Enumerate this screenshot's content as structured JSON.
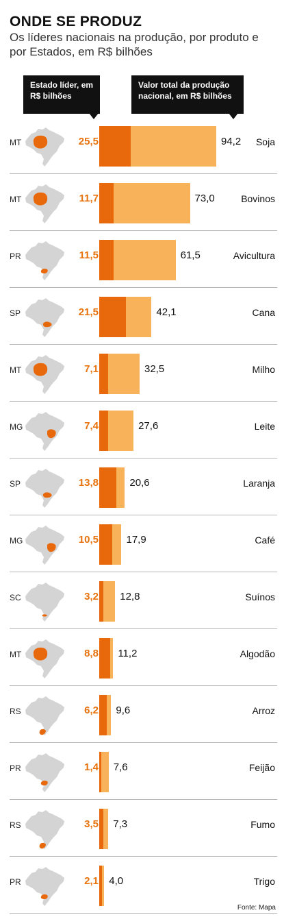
{
  "header": {
    "title": "ONDE SE PRODUZ",
    "subtitle": "Os líderes nacionais na produção, por produto e por Estados, em R$ bilhões"
  },
  "labels": {
    "state_leader": "Estado líder, em R$ bilhões",
    "national_total": "Valor total da produção nacional, em R$ bilhões"
  },
  "source": "Fonte: Mapa",
  "colors": {
    "leader": "#e8690b",
    "total": "#f7b25a",
    "map": "#d4d4d4",
    "highlight": "#e8690b"
  },
  "chart_data": {
    "type": "bar",
    "categories": [
      "Soja",
      "Bovinos",
      "Avicultura",
      "Cana",
      "Milho",
      "Leite",
      "Laranja",
      "Café",
      "Suínos",
      "Algodão",
      "Arroz",
      "Feijão",
      "Fumo",
      "Trigo"
    ],
    "series": [
      {
        "name": "Estado líder, em R$ bilhões",
        "values": [
          25.5,
          11.7,
          11.5,
          21.5,
          7.1,
          7.4,
          13.8,
          10.5,
          3.2,
          8.8,
          6.2,
          1.4,
          3.5,
          2.1
        ]
      },
      {
        "name": "Valor total da produção nacional, em R$ bilhões",
        "values": [
          94.2,
          73.0,
          61.5,
          42.1,
          32.5,
          27.6,
          20.6,
          17.9,
          12.8,
          11.2,
          9.6,
          7.6,
          7.3,
          4.0
        ]
      }
    ],
    "rows": [
      {
        "product": "Soja",
        "state": "MT",
        "leader_label": "25,5",
        "total_label": "94,2",
        "leader": 25.5,
        "total": 94.2
      },
      {
        "product": "Bovinos",
        "state": "MT",
        "leader_label": "11,7",
        "total_label": "73,0",
        "leader": 11.7,
        "total": 73.0
      },
      {
        "product": "Avicultura",
        "state": "PR",
        "leader_label": "11,5",
        "total_label": "61,5",
        "leader": 11.5,
        "total": 61.5
      },
      {
        "product": "Cana",
        "state": "SP",
        "leader_label": "21,5",
        "total_label": "42,1",
        "leader": 21.5,
        "total": 42.1
      },
      {
        "product": "Milho",
        "state": "MT",
        "leader_label": "7,1",
        "total_label": "32,5",
        "leader": 7.1,
        "total": 32.5
      },
      {
        "product": "Leite",
        "state": "MG",
        "leader_label": "7,4",
        "total_label": "27,6",
        "leader": 7.4,
        "total": 27.6
      },
      {
        "product": "Laranja",
        "state": "SP",
        "leader_label": "13,8",
        "total_label": "20,6",
        "leader": 13.8,
        "total": 20.6
      },
      {
        "product": "Café",
        "state": "MG",
        "leader_label": "10,5",
        "total_label": "17,9",
        "leader": 10.5,
        "total": 17.9
      },
      {
        "product": "Suínos",
        "state": "SC",
        "leader_label": "3,2",
        "total_label": "12,8",
        "leader": 3.2,
        "total": 12.8
      },
      {
        "product": "Algodão",
        "state": "MT",
        "leader_label": "8,8",
        "total_label": "11,2",
        "leader": 8.8,
        "total": 11.2
      },
      {
        "product": "Arroz",
        "state": "RS",
        "leader_label": "6,2",
        "total_label": "9,6",
        "leader": 6.2,
        "total": 9.6
      },
      {
        "product": "Feijão",
        "state": "PR",
        "leader_label": "1,4",
        "total_label": "7,6",
        "leader": 1.4,
        "total": 7.6
      },
      {
        "product": "Fumo",
        "state": "RS",
        "leader_label": "3,5",
        "total_label": "7,3",
        "leader": 3.5,
        "total": 7.3
      },
      {
        "product": "Trigo",
        "state": "PR",
        "leader_label": "2,1",
        "total_label": "4,0",
        "leader": 2.1,
        "total": 4.0
      }
    ],
    "xlim": [
      0,
      94.2
    ],
    "grid": false,
    "legend": "top"
  }
}
